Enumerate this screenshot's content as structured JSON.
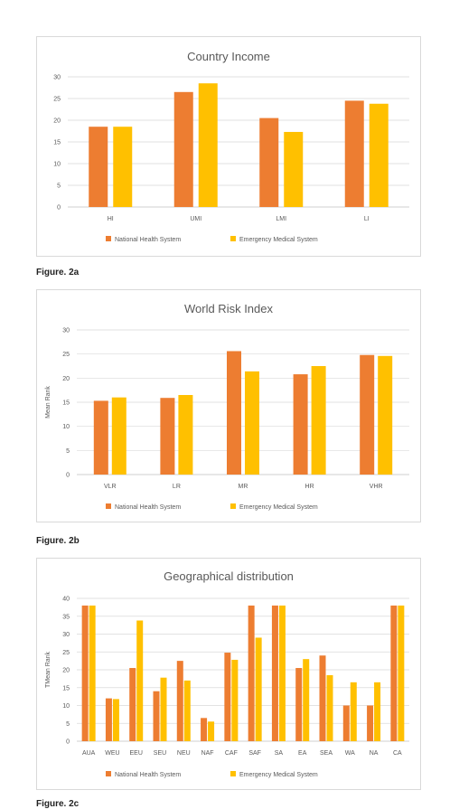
{
  "colors": {
    "nhs": "#ed7d31",
    "ems": "#ffc000",
    "grid": "#d9d9d9",
    "axis": "#bfbfbf",
    "text": "#595959"
  },
  "captions": [
    "Figure. 2a",
    "Figure. 2b",
    "Figure. 2c"
  ],
  "chart_data": [
    {
      "type": "bar",
      "title": "Country Income",
      "xlabel": "",
      "ylabel": "",
      "categories": [
        "HI",
        "UMI",
        "LMI",
        "LI"
      ],
      "ylim": [
        0,
        30
      ],
      "yticks": [
        0,
        5,
        10,
        15,
        20,
        25,
        30
      ],
      "series": [
        {
          "name": "National Health System",
          "values": [
            18.5,
            26.5,
            20.5,
            24.5
          ]
        },
        {
          "name": "Emergency Medical System",
          "values": [
            18.5,
            28.5,
            17.3,
            23.8
          ]
        }
      ],
      "legend": "bottom",
      "grid": true
    },
    {
      "type": "bar",
      "title": "World Risk Index",
      "xlabel": "",
      "ylabel": "Mean Rank",
      "categories": [
        "VLR",
        "LR",
        "MR",
        "HR",
        "VHR"
      ],
      "ylim": [
        0,
        30
      ],
      "yticks": [
        0,
        5,
        10,
        15,
        20,
        25,
        30
      ],
      "series": [
        {
          "name": "National Health System",
          "values": [
            15.3,
            15.9,
            25.6,
            20.8,
            24.8
          ]
        },
        {
          "name": "Emergency Medical System",
          "values": [
            16.0,
            16.5,
            21.4,
            22.5,
            24.6
          ]
        }
      ],
      "legend": "bottom",
      "grid": true
    },
    {
      "type": "bar",
      "title": "Geographical distribution",
      "xlabel": "",
      "ylabel": "TMean Rank",
      "categories": [
        "AUA",
        "WEU",
        "EEU",
        "SEU",
        "NEU",
        "NAF",
        "CAF",
        "SAF",
        "SA",
        "EA",
        "SEA",
        "WA",
        "NA",
        "CA"
      ],
      "ylim": [
        0,
        40
      ],
      "yticks": [
        0,
        5,
        10,
        15,
        20,
        25,
        30,
        35,
        40
      ],
      "series": [
        {
          "name": "National Health System",
          "values": [
            38,
            12,
            20.5,
            14,
            22.5,
            6.5,
            24.8,
            38,
            38,
            20.5,
            24,
            10,
            10,
            38
          ]
        },
        {
          "name": "Emergency Medical System",
          "values": [
            38,
            11.8,
            33.8,
            17.8,
            17,
            5.5,
            22.8,
            29,
            38,
            23,
            18.5,
            16.5,
            16.5,
            38
          ]
        }
      ],
      "legend": "bottom",
      "grid": true
    }
  ]
}
